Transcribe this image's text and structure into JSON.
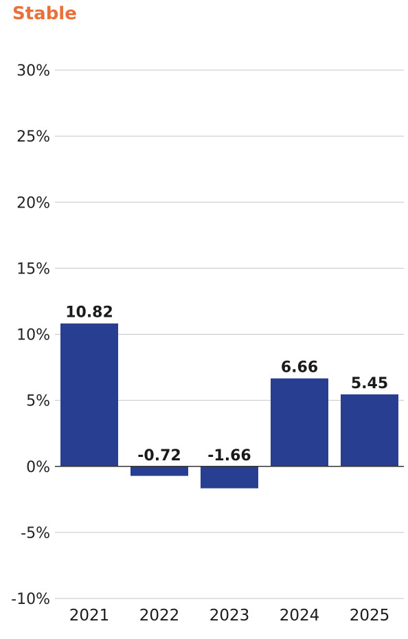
{
  "title": "Stable",
  "colors": {
    "title": "#e8703a",
    "bar": "#283f91",
    "grid": "#c4c4c4",
    "zero_line": "#333333"
  },
  "chart_data": {
    "type": "bar",
    "title": "Stable",
    "categories": [
      "2021",
      "2022",
      "2023",
      "2024",
      "2025"
    ],
    "values": [
      10.82,
      -0.72,
      -1.66,
      6.66,
      5.45
    ],
    "data_labels": [
      "10.82",
      "-0.72",
      "-1.66",
      "6.66",
      "5.45"
    ],
    "xlabel": "",
    "ylabel": "",
    "ylim": [
      -10,
      30
    ],
    "y_ticks": [
      30,
      25,
      20,
      15,
      10,
      5,
      0,
      -5,
      -10
    ],
    "y_tick_labels": [
      "30%",
      "25%",
      "20%",
      "15%",
      "10%",
      "5%",
      "0%",
      "-5%",
      "-10%"
    ],
    "grid": true,
    "legend": "none"
  }
}
